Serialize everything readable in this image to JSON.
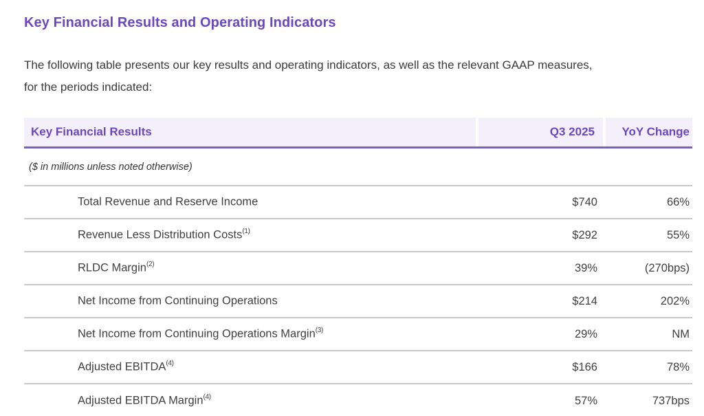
{
  "page": {
    "title": "Key Financial Results and Operating Indicators",
    "intro": "The following table presents our key results and operating indicators, as well as the relevant GAAP measures, for the periods indicated:"
  },
  "colors": {
    "accent_purple": "#6b46c1",
    "header_background": "#f4f0fb",
    "header_underline": "#7a5ec6",
    "row_divider": "#c9c9c9",
    "body_text": "#3d3d3d"
  },
  "table": {
    "header": {
      "col_label": "Key Financial Results",
      "col_period": "Q3 2025",
      "col_yoy": "YoY Change"
    },
    "unit_note": "($ in millions unless noted otherwise)",
    "rows": [
      {
        "label": "Total Revenue and Reserve Income",
        "footnote": "",
        "period_value": "$740",
        "yoy_change": "66%"
      },
      {
        "label": "Revenue Less Distribution Costs",
        "footnote": "(1)",
        "period_value": "$292",
        "yoy_change": "55%"
      },
      {
        "label": "RLDC Margin",
        "footnote": "(2)",
        "period_value": "39%",
        "yoy_change": "(270bps)"
      },
      {
        "label": "Net Income from Continuing Operations",
        "footnote": "",
        "period_value": "$214",
        "yoy_change": "202%"
      },
      {
        "label": "Net Income from Continuing Operations Margin",
        "footnote": "(3)",
        "period_value": "29%",
        "yoy_change": "NM"
      },
      {
        "label": "Adjusted EBITDA",
        "footnote": "(4)",
        "period_value": "$166",
        "yoy_change": "78%"
      },
      {
        "label": "Adjusted EBITDA Margin",
        "footnote": "(4)",
        "period_value": "57%",
        "yoy_change": "737bps"
      }
    ]
  }
}
